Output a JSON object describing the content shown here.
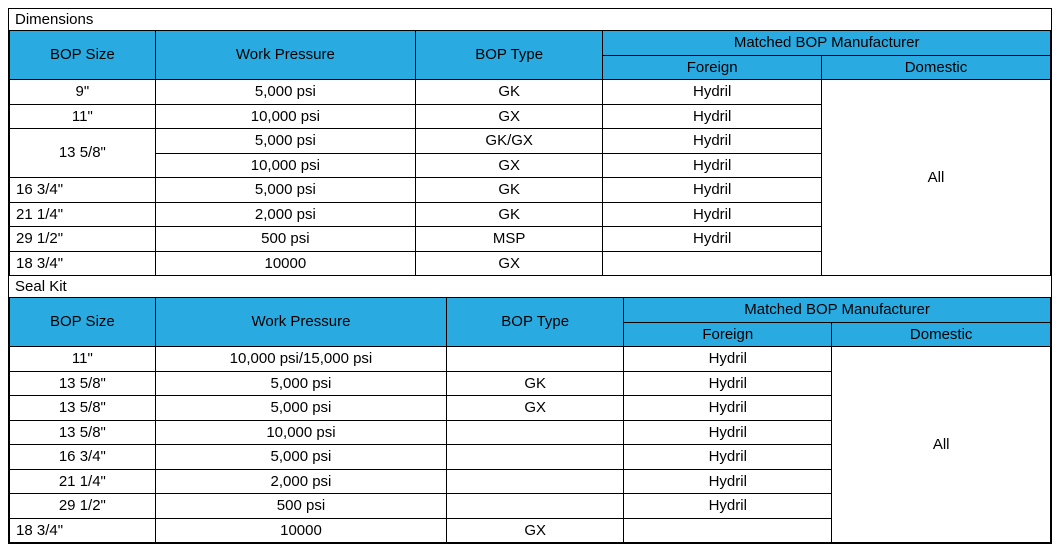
{
  "colors": {
    "header_bg": "#29abe2",
    "border": "#000000",
    "page_bg": "#ffffff",
    "text": "#000000"
  },
  "font": {
    "family": "Arial",
    "size_pt": 15
  },
  "col_widths_pct": [
    14,
    25,
    18,
    21,
    22
  ],
  "sections": {
    "dimensions": {
      "title": "Dimensions",
      "headers": {
        "bop_size": "BOP Size",
        "work_pressure": "Work Pressure",
        "bop_type": "BOP Type",
        "matched_mfr": "Matched BOP Manufacturer",
        "foreign": "Foreign",
        "domestic": "Domestic"
      },
      "domestic_merged": "All",
      "rows": [
        {
          "size": "9\"",
          "pressure": "5,000 psi",
          "type": "GK",
          "foreign": "Hydril",
          "size_rowspan": 1,
          "size_align": "center"
        },
        {
          "size": "11\"",
          "pressure": "10,000 psi",
          "type": "GX",
          "foreign": "Hydril",
          "size_rowspan": 1,
          "size_align": "center"
        },
        {
          "size": "13 5/8\"",
          "pressure": "5,000 psi",
          "type": "GK/GX",
          "foreign": "Hydril",
          "size_rowspan": 2,
          "size_align": "center"
        },
        {
          "size": null,
          "pressure": "10,000 psi",
          "type": "GX",
          "foreign": "Hydril"
        },
        {
          "size": "16 3/4\"",
          "pressure": "5,000 psi",
          "type": "GK",
          "foreign": "Hydril",
          "size_rowspan": 1,
          "size_align": "left"
        },
        {
          "size": "21 1/4\"",
          "pressure": "2,000 psi",
          "type": "GK",
          "foreign": "Hydril",
          "size_rowspan": 1,
          "size_align": "left"
        },
        {
          "size": "29 1/2\"",
          "pressure": "500 psi",
          "type": "MSP",
          "foreign": "Hydril",
          "size_rowspan": 1,
          "size_align": "left"
        },
        {
          "size": "18 3/4\"",
          "pressure": "10000",
          "type": "GX",
          "foreign": "",
          "size_rowspan": 1,
          "size_align": "left"
        }
      ]
    },
    "sealkit": {
      "title": "Seal Kit",
      "col_widths_pct": [
        14,
        28,
        17,
        20,
        21
      ],
      "headers": {
        "bop_size": "BOP Size",
        "work_pressure": "Work Pressure",
        "bop_type": "BOP Type",
        "matched_mfr": "Matched BOP Manufacturer",
        "foreign": "Foreign",
        "domestic": "Domestic"
      },
      "domestic_merged": "All",
      "rows": [
        {
          "size": "11\"",
          "pressure": "10,000 psi/15,000 psi",
          "type": "",
          "foreign": "Hydril",
          "size_align": "center"
        },
        {
          "size": "13 5/8\"",
          "pressure": "5,000 psi",
          "type": "GK",
          "foreign": "Hydril",
          "size_align": "center"
        },
        {
          "size": "13 5/8\"",
          "pressure": "5,000 psi",
          "type": "GX",
          "foreign": "Hydril",
          "size_align": "center"
        },
        {
          "size": "13 5/8\"",
          "pressure": "10,000 psi",
          "type": "",
          "foreign": "Hydril",
          "size_align": "center"
        },
        {
          "size": "16 3/4\"",
          "pressure": "5,000 psi",
          "type": "",
          "foreign": "Hydril",
          "size_align": "center"
        },
        {
          "size": "21 1/4\"",
          "pressure": "2,000 psi",
          "type": "",
          "foreign": "Hydril",
          "size_align": "center"
        },
        {
          "size": "29 1/2\"",
          "pressure": "500 psi",
          "type": "",
          "foreign": "Hydril",
          "size_align": "center"
        },
        {
          "size": "18 3/4\"",
          "pressure": "10000",
          "type": "GX",
          "foreign": "",
          "size_align": "left"
        }
      ]
    }
  }
}
